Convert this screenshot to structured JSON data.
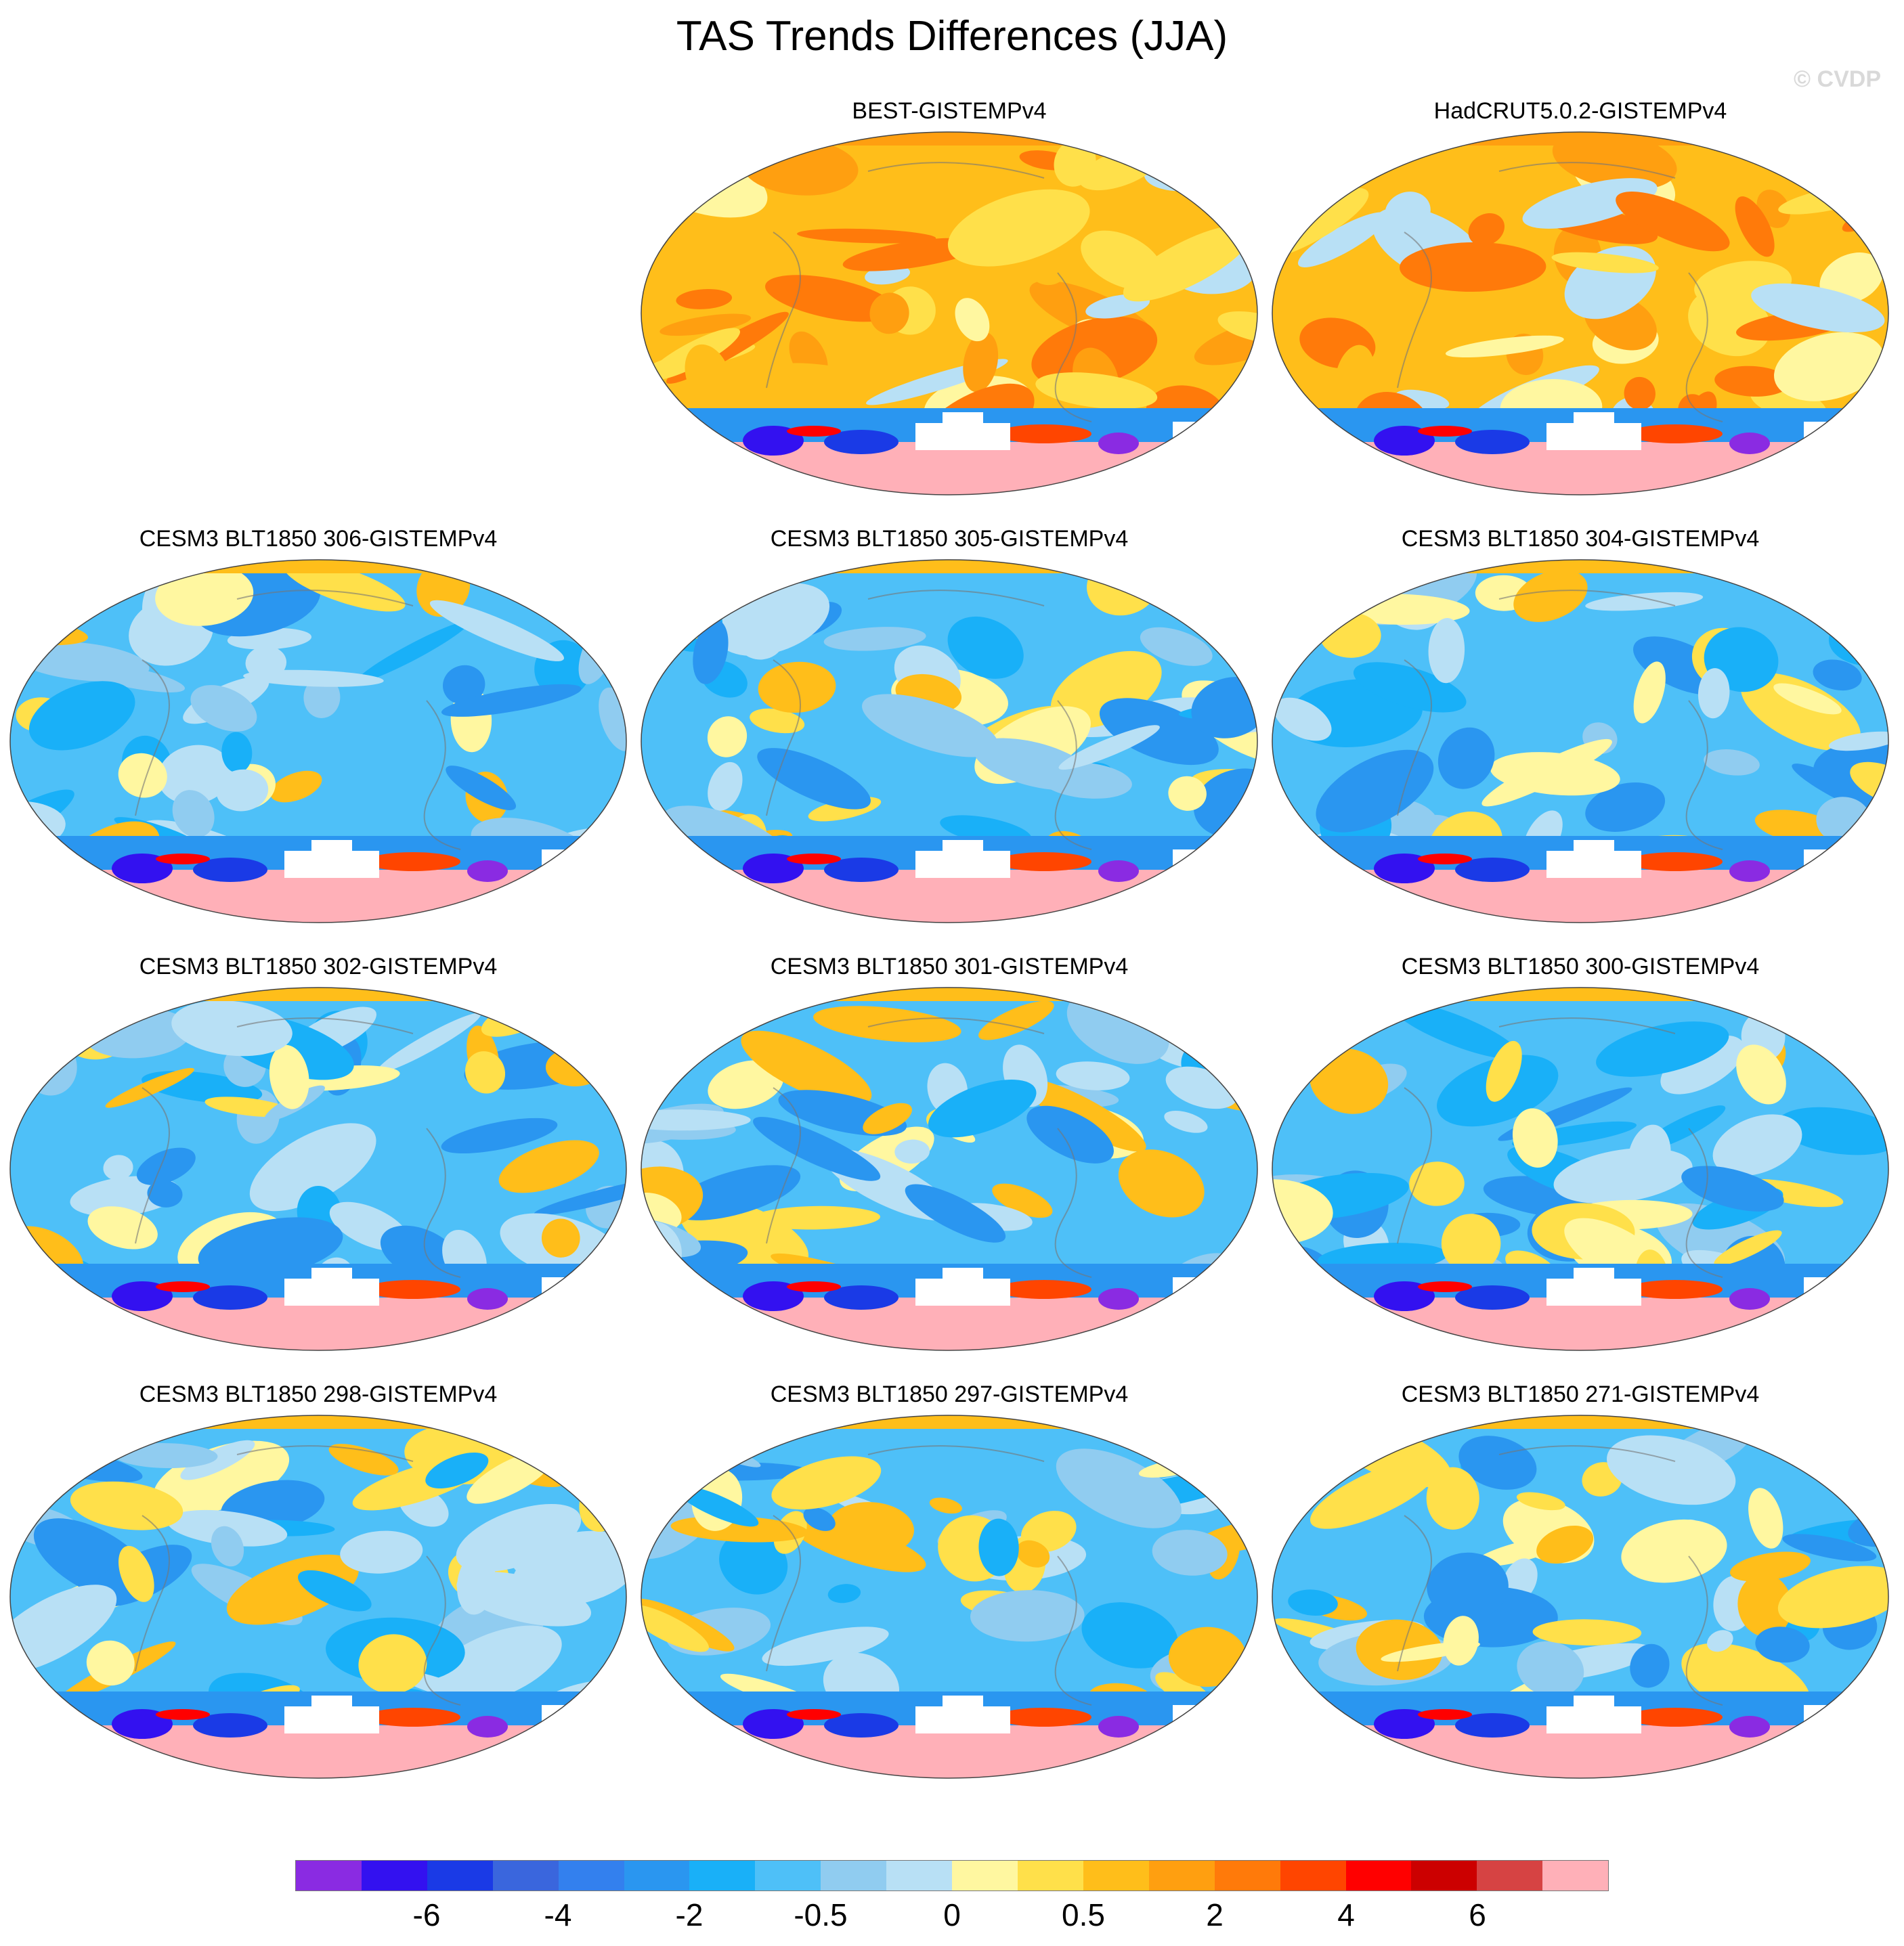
{
  "title": "TAS Trends Differences (JJA)",
  "watermark": "© CVDP",
  "panels": [
    {
      "title": "BEST-GISTEMPv4",
      "tone": "warm"
    },
    {
      "title": "HadCRUT5.0.2-GISTEMPv4",
      "tone": "warm"
    },
    {
      "title": "CESM3 BLT1850 306-GISTEMPv4",
      "tone": "cool"
    },
    {
      "title": "CESM3 BLT1850 305-GISTEMPv4",
      "tone": "cool"
    },
    {
      "title": "CESM3 BLT1850 304-GISTEMPv4",
      "tone": "cool"
    },
    {
      "title": "CESM3 BLT1850 302-GISTEMPv4",
      "tone": "cool"
    },
    {
      "title": "CESM3 BLT1850 301-GISTEMPv4",
      "tone": "cool"
    },
    {
      "title": "CESM3 BLT1850 300-GISTEMPv4",
      "tone": "cool"
    },
    {
      "title": "CESM3 BLT1850 298-GISTEMPv4",
      "tone": "cool"
    },
    {
      "title": "CESM3 BLT1850 297-GISTEMPv4",
      "tone": "cool"
    },
    {
      "title": "CESM3 BLT1850 271-GISTEMPv4",
      "tone": "cool"
    }
  ],
  "colorbar": {
    "colors": [
      "#8a2be2",
      "#3311f0",
      "#1a3ae6",
      "#3a66dd",
      "#3380ee",
      "#2a96f0",
      "#19b0f8",
      "#4ec0f8",
      "#90ccf0",
      "#b8e0f5",
      "#fff7a0",
      "#ffe04a",
      "#ffbe1a",
      "#ff9f10",
      "#ff7a0a",
      "#ff4500",
      "#ff0000",
      "#cc0000",
      "#d64343",
      "#ffb0b8"
    ],
    "labels": [
      "-6",
      "-4",
      "-2",
      "-0.5",
      "0",
      "0.5",
      "2",
      "4",
      "6"
    ]
  }
}
